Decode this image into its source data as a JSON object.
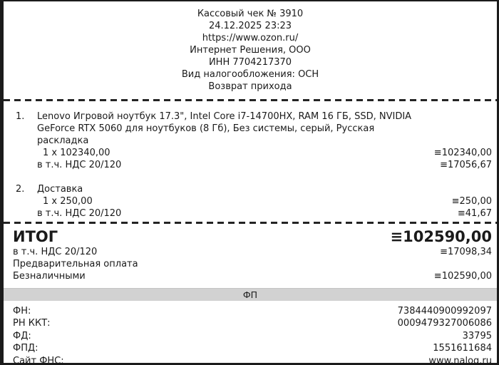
{
  "receipt": {
    "header": {
      "title": "Кассовый чек № 3910",
      "datetime": "24.12.2025 23:23",
      "url": "https://www.ozon.ru/",
      "company": "Интернет Решения, ООО",
      "inn": "ИНН 7704217370",
      "tax_system": "Вид налогообложения: ОСН",
      "operation_type": "Возврат прихода"
    },
    "items": [
      {
        "number": "1.",
        "description": "Lenovo Игровой ноутбук 17.3\", Intel Core i7-14700HX, RAM 16 ГБ, SSD, NVIDIA GeForce RTX 5060 для ноутбуков (8 Гб), Без системы, серый, Русская раскладка",
        "quantity_price": "1 x 102340,00",
        "amount": "≡102340,00",
        "vat_label": "в т.ч. НДС 20/120",
        "vat_amount": "≡17056,67"
      },
      {
        "number": "2.",
        "description": "Доставка",
        "quantity_price": "1 x 250,00",
        "amount": "≡250,00",
        "vat_label": "в т.ч. НДС 20/120",
        "vat_amount": "≡41,67"
      }
    ],
    "totals": {
      "total_label": "ИТОГ",
      "total_amount": "≡102590,00",
      "vat_label": "в т.ч. НДС 20/120",
      "vat_amount": "≡17098,34",
      "prepayment_label": "Предварительная оплата",
      "cashless_label": "Безналичными",
      "cashless_amount": "≡102590,00"
    },
    "fiscal": {
      "section_title": "ФП",
      "rows": [
        {
          "label": "ФН:",
          "value": "7384440900992097"
        },
        {
          "label": "РН ККТ:",
          "value": "0009479327006086"
        },
        {
          "label": "ФД:",
          "value": "33795"
        },
        {
          "label": "ФПД:",
          "value": "1551611684"
        },
        {
          "label": "Сайт ФНС:",
          "value": "www.nalog.ru"
        }
      ]
    },
    "colors": {
      "fiscal_bar_bg": "#d2d2d2",
      "frame": "#1b1b1b",
      "text": "#1a1a1a",
      "paper": "#ffffff"
    }
  }
}
